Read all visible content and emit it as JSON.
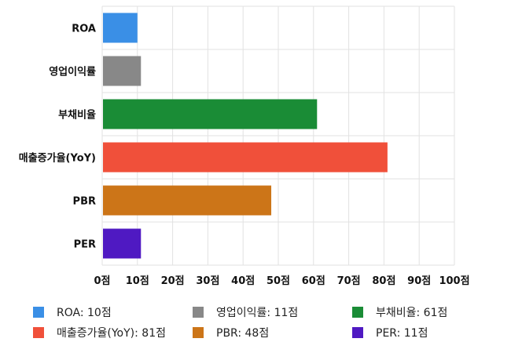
{
  "chart_data": {
    "type": "bar",
    "orientation": "horizontal",
    "categories": [
      "ROA",
      "영업이익률",
      "부채비율",
      "매출증가율(YoY)",
      "PBR",
      "PER"
    ],
    "values": [
      10,
      11,
      61,
      81,
      48,
      11
    ],
    "colors": [
      "#3a8fe6",
      "#888888",
      "#1a8c36",
      "#f0503a",
      "#cc7518",
      "#4f19c2"
    ],
    "xlim": [
      0,
      100
    ],
    "xticks": [
      "0점",
      "10점",
      "20점",
      "30점",
      "40점",
      "50점",
      "60점",
      "70점",
      "80점",
      "90점",
      "100점"
    ],
    "grid": true,
    "legend_position": "bottom",
    "legend": [
      "ROA: 10점",
      "영업이익률: 11점",
      "부채비율: 61점",
      "매출증가율(YoY): 81점",
      "PBR: 48점",
      "PER: 11점"
    ]
  }
}
